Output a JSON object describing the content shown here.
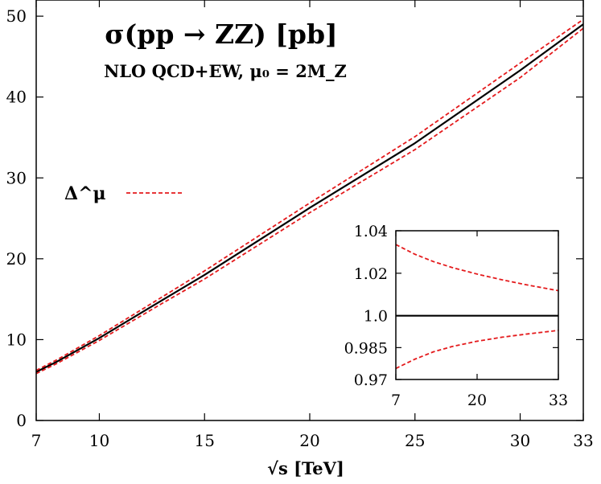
{
  "chart_data": [
    {
      "type": "line",
      "title": "σ(pp → ZZ) [pb]",
      "subtitle": "NLO QCD+EW, μ₀ = 2M_Z",
      "xlabel": "√s [TeV]",
      "ylabel": "",
      "xlim": [
        7,
        33
      ],
      "ylim": [
        0,
        52
      ],
      "xticks": [
        7,
        10,
        15,
        20,
        25,
        30,
        33
      ],
      "yticks": [
        0,
        10,
        20,
        30,
        40,
        50
      ],
      "grid": false,
      "legend_position": "left-middle",
      "legend": [
        {
          "label": "Δ^μ",
          "color": "#e41a1c",
          "style": "dashed"
        }
      ],
      "x": [
        7,
        8,
        10,
        13,
        15,
        20,
        25,
        30,
        33
      ],
      "series": [
        {
          "role": "central",
          "color": "#000000",
          "style": "solid",
          "values": [
            6.0,
            7.3,
            10.2,
            14.9,
            18.0,
            26.3,
            34.3,
            43.3,
            49.0
          ]
        },
        {
          "role": "upper",
          "color": "#e41a1c",
          "style": "dashed",
          "values": [
            6.2,
            7.53,
            10.5,
            15.3,
            18.5,
            26.9,
            35.1,
            44.2,
            49.6
          ]
        },
        {
          "role": "lower",
          "color": "#e41a1c",
          "style": "dashed",
          "values": [
            5.8,
            7.07,
            9.9,
            14.5,
            17.5,
            25.7,
            33.5,
            42.4,
            48.5
          ]
        }
      ]
    },
    {
      "type": "line",
      "xlim": [
        7,
        33
      ],
      "ylim": [
        0.97,
        1.04
      ],
      "xticks": [
        7,
        20,
        33
      ],
      "yticks": [
        {
          "value": 0.97,
          "label": "0.97"
        },
        {
          "value": 0.985,
          "label": "0.985"
        },
        {
          "value": 1.0,
          "label": "1.0"
        },
        {
          "value": 1.02,
          "label": "1.02"
        },
        {
          "value": 1.04,
          "label": "1.04"
        }
      ],
      "x": [
        7,
        10,
        13,
        16,
        20,
        24,
        28,
        33
      ],
      "series": [
        {
          "role": "central",
          "color": "#000000",
          "style": "solid",
          "values": [
            1.0,
            1.0,
            1.0,
            1.0,
            1.0,
            1.0,
            1.0,
            1.0
          ]
        },
        {
          "role": "upper",
          "color": "#e41a1c",
          "style": "dashed",
          "values": [
            1.0335,
            1.029,
            1.0255,
            1.0227,
            1.0196,
            1.0169,
            1.0145,
            1.0118
          ]
        },
        {
          "role": "lower",
          "color": "#e41a1c",
          "style": "dashed",
          "values": [
            0.9752,
            0.9795,
            0.983,
            0.9855,
            0.988,
            0.9899,
            0.9914,
            0.9931
          ]
        }
      ]
    }
  ]
}
